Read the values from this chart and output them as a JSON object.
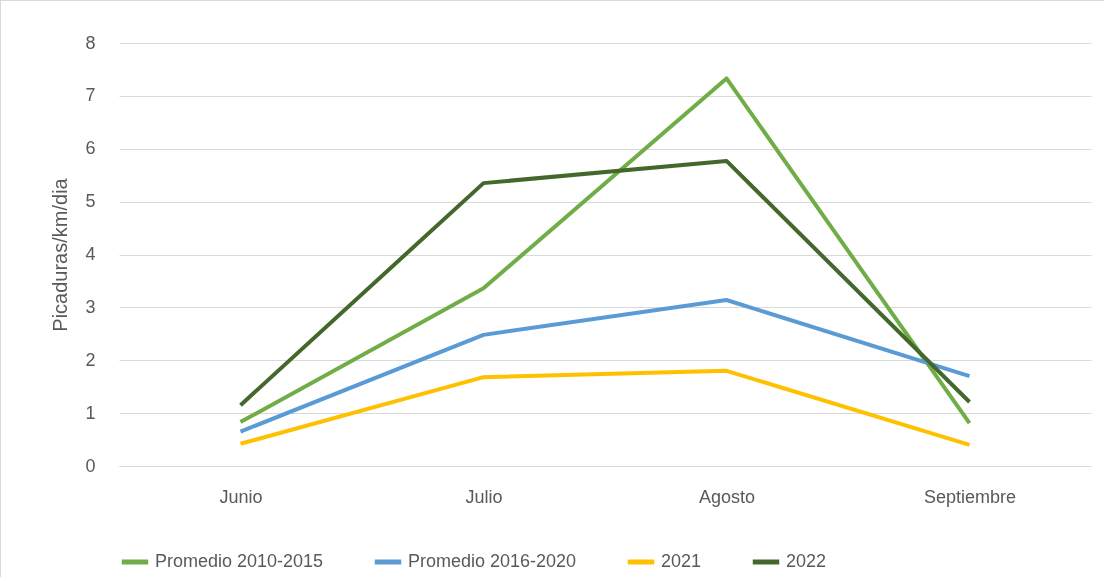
{
  "chart_data": {
    "type": "line",
    "ylabel": "Picaduras/km/dia",
    "categories": [
      "Junio",
      "Julio",
      "Agosto",
      "Septiembre"
    ],
    "series": [
      {
        "name": "Promedio 2010-2015",
        "color": "#70ad47",
        "values": [
          0.83,
          3.36,
          7.33,
          0.81
        ]
      },
      {
        "name": "Promedio 2016-2020",
        "color": "#5b9bd5",
        "values": [
          0.65,
          2.48,
          3.14,
          1.7
        ]
      },
      {
        "name": "2021",
        "color": "#ffc000",
        "values": [
          0.42,
          1.68,
          1.8,
          0.4
        ]
      },
      {
        "name": "2022",
        "color": "#43682b",
        "values": [
          1.15,
          5.35,
          5.77,
          1.21
        ]
      }
    ],
    "ylim": [
      0,
      8
    ],
    "yticks": [
      0,
      1,
      2,
      3,
      4,
      5,
      6,
      7,
      8
    ],
    "grid": "y",
    "legend": "bottom",
    "marker": "none",
    "line_style": "solid"
  }
}
